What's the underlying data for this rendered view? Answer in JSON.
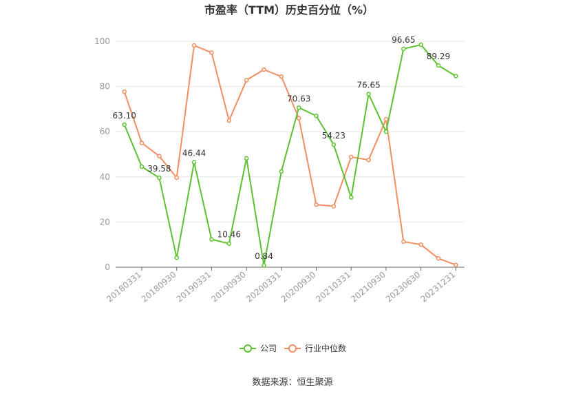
{
  "chart_data": {
    "type": "line",
    "title": "市盈率（TTM）历史百分位（%）",
    "xlabel": "",
    "ylabel": "",
    "ylim": [
      0,
      100
    ],
    "yticks": [
      0,
      20,
      40,
      60,
      80,
      100
    ],
    "x_tick_labels": [
      "20180331",
      "20180930",
      "20190331",
      "20190930",
      "20200331",
      "20200930",
      "20210331",
      "20210930",
      "20230630",
      "20231231"
    ],
    "grid": true,
    "legend_position": "bottom",
    "series": [
      {
        "name": "公司",
        "color": "#5cc12f",
        "values": [
          63.1,
          44.5,
          39.58,
          4.2,
          46.44,
          12.3,
          10.46,
          48.2,
          0.84,
          42.4,
          70.63,
          67.0,
          54.23,
          30.9,
          76.65,
          60.0,
          96.65,
          98.5,
          89.29,
          84.6
        ]
      },
      {
        "name": "行业中位数",
        "color": "#f28d5f",
        "values": [
          77.7,
          55.0,
          49.2,
          39.6,
          98.2,
          95.0,
          64.9,
          82.8,
          87.5,
          84.4,
          66.0,
          27.7,
          27.0,
          48.8,
          47.5,
          65.5,
          11.3,
          10.0,
          3.9,
          1.0
        ]
      }
    ],
    "data_labels": [
      {
        "series": 0,
        "index": 0,
        "text": "63.10"
      },
      {
        "series": 0,
        "index": 2,
        "text": "39.58"
      },
      {
        "series": 0,
        "index": 4,
        "text": "46.44"
      },
      {
        "series": 0,
        "index": 6,
        "text": "10.46"
      },
      {
        "series": 0,
        "index": 8,
        "text": "0.84"
      },
      {
        "series": 0,
        "index": 10,
        "text": "70.63"
      },
      {
        "series": 0,
        "index": 12,
        "text": "54.23"
      },
      {
        "series": 0,
        "index": 14,
        "text": "76.65"
      },
      {
        "series": 0,
        "index": 16,
        "text": "96.65"
      },
      {
        "series": 0,
        "index": 18,
        "text": "89.29"
      }
    ]
  },
  "source_text": "数据来源：恒生聚源"
}
